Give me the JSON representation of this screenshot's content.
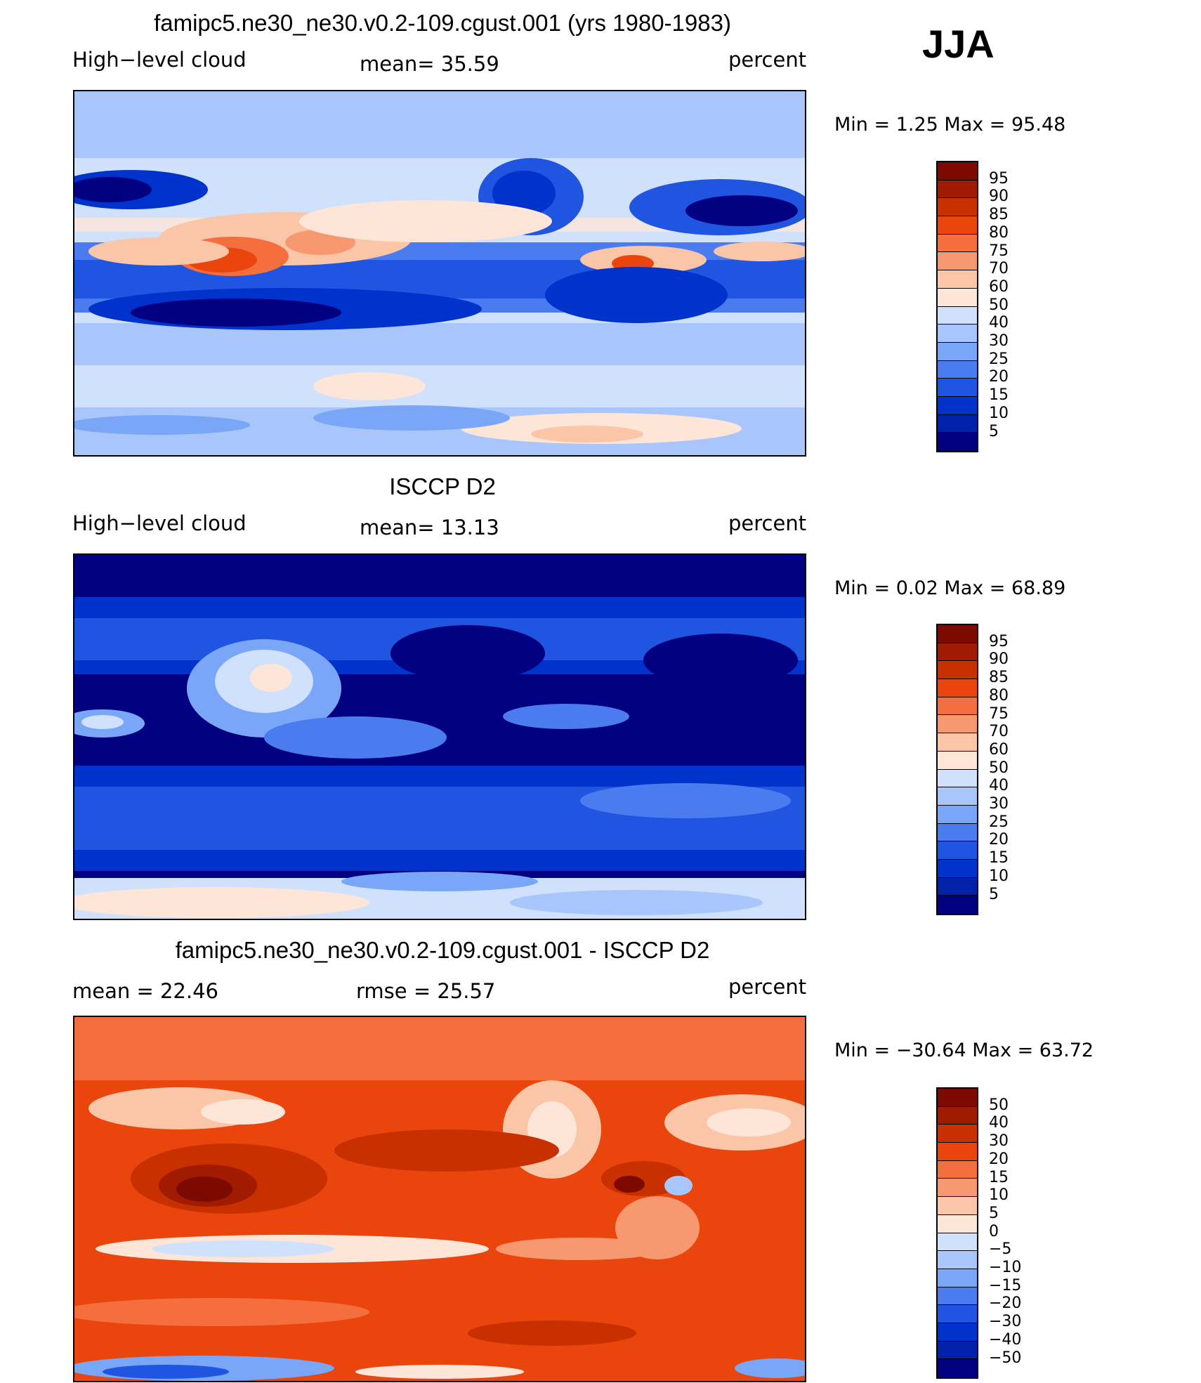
{
  "season": "JJA",
  "colors": {
    "full_scale": [
      "#000080",
      "#0022aa",
      "#0033cc",
      "#1f55e0",
      "#4a7cf0",
      "#7aa6f7",
      "#a8c6fb",
      "#cfe1fd",
      "#fde6d8",
      "#fbc6a8",
      "#f89870",
      "#f56f3e",
      "#e9450d",
      "#c83000",
      "#a01b00",
      "#7d0a00"
    ],
    "diff_scale": [
      "#000080",
      "#0022aa",
      "#0033cc",
      "#1f55e0",
      "#4a7cf0",
      "#7aa6f7",
      "#a8c6fb",
      "#cfe1fd",
      "#fde6d8",
      "#fbc6a8",
      "#f89870",
      "#f56f3e",
      "#e9450d",
      "#c83000",
      "#a01b00",
      "#7d0a00"
    ]
  },
  "panels": [
    {
      "title": "famipc5.ne30_ne30.v0.2-109.cgust.001 (yrs 1980-1983)",
      "left_label": "High−level cloud",
      "center_label": "mean=   35.59",
      "right_label": "percent",
      "stats": "Min  =     1.25  Max  =    95.48",
      "ticks": [
        "95",
        "90",
        "85",
        "80",
        "75",
        "70",
        "60",
        "50",
        "40",
        "30",
        "25",
        "20",
        "15",
        "10",
        "5"
      ],
      "field_mean": 35.59,
      "field_min": 1.25,
      "field_max": 95.48
    },
    {
      "title": "ISCCP D2",
      "left_label": "High−level cloud",
      "center_label": "mean=   13.13",
      "right_label": "percent",
      "stats": "Min  =     0.02  Max  =    68.89",
      "ticks": [
        "95",
        "90",
        "85",
        "80",
        "75",
        "70",
        "60",
        "50",
        "40",
        "30",
        "25",
        "20",
        "15",
        "10",
        "5"
      ],
      "field_mean": 13.13,
      "field_min": 0.02,
      "field_max": 68.89
    },
    {
      "title": "famipc5.ne30_ne30.v0.2-109.cgust.001 - ISCCP D2",
      "left_label": "mean  =    22.46",
      "center_label": "rmse  =    25.57",
      "right_label": "percent",
      "stats": "Min  = −30.64  Max  =    63.72",
      "ticks": [
        "50",
        "40",
        "30",
        "20",
        "15",
        "10",
        "5",
        "0",
        "−5",
        "−10",
        "−15",
        "−20",
        "−30",
        "−40",
        "−50"
      ],
      "field_mean": 22.46,
      "field_rmse": 25.57,
      "field_min": -30.64,
      "field_max": 63.72
    }
  ]
}
